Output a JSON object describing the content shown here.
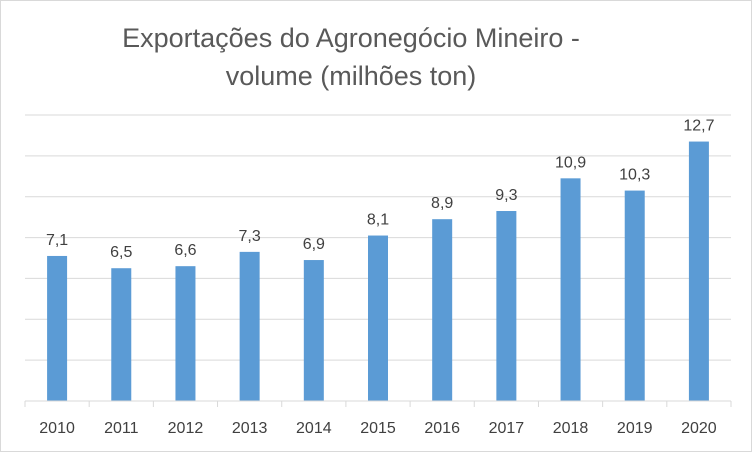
{
  "chart_data": {
    "type": "bar",
    "title": "Exportações do Agronegócio Mineiro -\nvolume (milhões ton)",
    "xlabel": "",
    "ylabel": "",
    "categories": [
      "2010",
      "2011",
      "2012",
      "2013",
      "2014",
      "2015",
      "2016",
      "2017",
      "2018",
      "2019",
      "2020"
    ],
    "values": [
      7.1,
      6.5,
      6.6,
      7.3,
      6.9,
      8.1,
      8.9,
      9.3,
      10.9,
      10.3,
      12.7
    ],
    "data_labels": [
      "7,1",
      "6,5",
      "6,6",
      "7,3",
      "6,9",
      "8,1",
      "8,9",
      "9,3",
      "10,9",
      "10,3",
      "12,7"
    ],
    "ylim": [
      0,
      14
    ],
    "grid": true,
    "y_axis_visible": false,
    "legend": "none",
    "bar_color": "#5b9bd5",
    "grid_color": "#d9d9d9"
  }
}
